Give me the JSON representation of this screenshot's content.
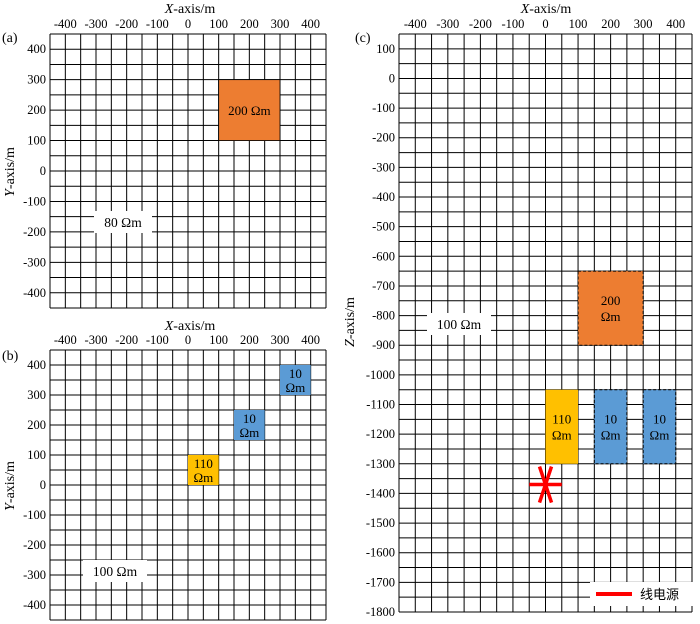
{
  "colors": {
    "orange": "#ED7D31",
    "yellow": "#FFC000",
    "blue": "#5B9BD5",
    "grid": "#000000",
    "source_red": "#FF0000"
  },
  "panel_a": {
    "label": "(a)",
    "xlabel_italic": "X",
    "xlabel_rest": "-axis/m",
    "ylabel_italic": "Y",
    "ylabel_rest": "-axis/m",
    "x_ticks": [
      "-400",
      "-300",
      "-200",
      "-100",
      "0",
      "100",
      "200",
      "300",
      "400"
    ],
    "y_ticks": [
      "400",
      "300",
      "200",
      "100",
      "0",
      "-100",
      "-200",
      "-300",
      "-400"
    ],
    "xlim": [
      -450,
      450
    ],
    "ylim": [
      -450,
      450
    ],
    "background_label": "80 Ωm",
    "blocks": [
      {
        "label": "200 Ωm",
        "color": "orange",
        "x": [
          100,
          300
        ],
        "y": [
          100,
          300
        ],
        "dashed": false
      }
    ]
  },
  "panel_b": {
    "label": "(b)",
    "xlabel_italic": "X",
    "xlabel_rest": "-axis/m",
    "ylabel_italic": "Y",
    "ylabel_rest": "-axis/m",
    "x_ticks": [
      "-400",
      "-300",
      "-200",
      "-100",
      "0",
      "100",
      "200",
      "300",
      "400"
    ],
    "y_ticks": [
      "400",
      "300",
      "200",
      "100",
      "0",
      "-100",
      "-200",
      "-300",
      "-400"
    ],
    "xlim": [
      -450,
      450
    ],
    "ylim": [
      -450,
      450
    ],
    "background_label": "100 Ωm",
    "blocks": [
      {
        "line1": "110",
        "line2": "Ωm",
        "color": "yellow",
        "x": [
          0,
          100
        ],
        "y": [
          0,
          100
        ]
      },
      {
        "line1": "10",
        "line2": "Ωm",
        "color": "blue",
        "x": [
          150,
          250
        ],
        "y": [
          150,
          250
        ]
      },
      {
        "line1": "10",
        "line2": "Ωm",
        "color": "blue",
        "x": [
          300,
          400
        ],
        "y": [
          300,
          400
        ]
      }
    ]
  },
  "panel_c": {
    "label": "(c)",
    "xlabel_italic": "X",
    "xlabel_rest": "-axis/m",
    "zlabel_italic": "Z",
    "zlabel_rest": "-axis/m",
    "x_ticks": [
      "-400",
      "-300",
      "-200",
      "-100",
      "0",
      "100",
      "200",
      "300",
      "400"
    ],
    "z_ticks": [
      "100",
      "0",
      "-100",
      "-200",
      "-300",
      "-400",
      "-500",
      "-600",
      "-700",
      "-800",
      "-900",
      "-1000",
      "-1100",
      "-1200",
      "-1300",
      "-1400",
      "-1500",
      "-1600",
      "-1700",
      "-1800"
    ],
    "xlim": [
      -450,
      450
    ],
    "zlim": [
      -1800,
      150
    ],
    "background_label": "100 Ωm",
    "blocks": [
      {
        "line1": "200",
        "line2": "Ωm",
        "color": "orange",
        "x": [
          100,
          300
        ],
        "z": [
          -900,
          -650
        ],
        "dashed": true
      },
      {
        "line1": "110",
        "line2": "Ωm",
        "color": "yellow",
        "x": [
          0,
          100
        ],
        "z": [
          -1300,
          -1050
        ],
        "dashed": false
      },
      {
        "line1": "10",
        "line2": "Ωm",
        "color": "blue",
        "x": [
          150,
          250
        ],
        "z": [
          -1300,
          -1050
        ],
        "dashed": true
      },
      {
        "line1": "10",
        "line2": "Ωm",
        "color": "blue",
        "x": [
          300,
          400
        ],
        "z": [
          -1300,
          -1050
        ],
        "dashed": true
      }
    ],
    "source": {
      "x": -50,
      "z": -1370,
      "x_end": 50
    },
    "legend_label": "线电源"
  }
}
